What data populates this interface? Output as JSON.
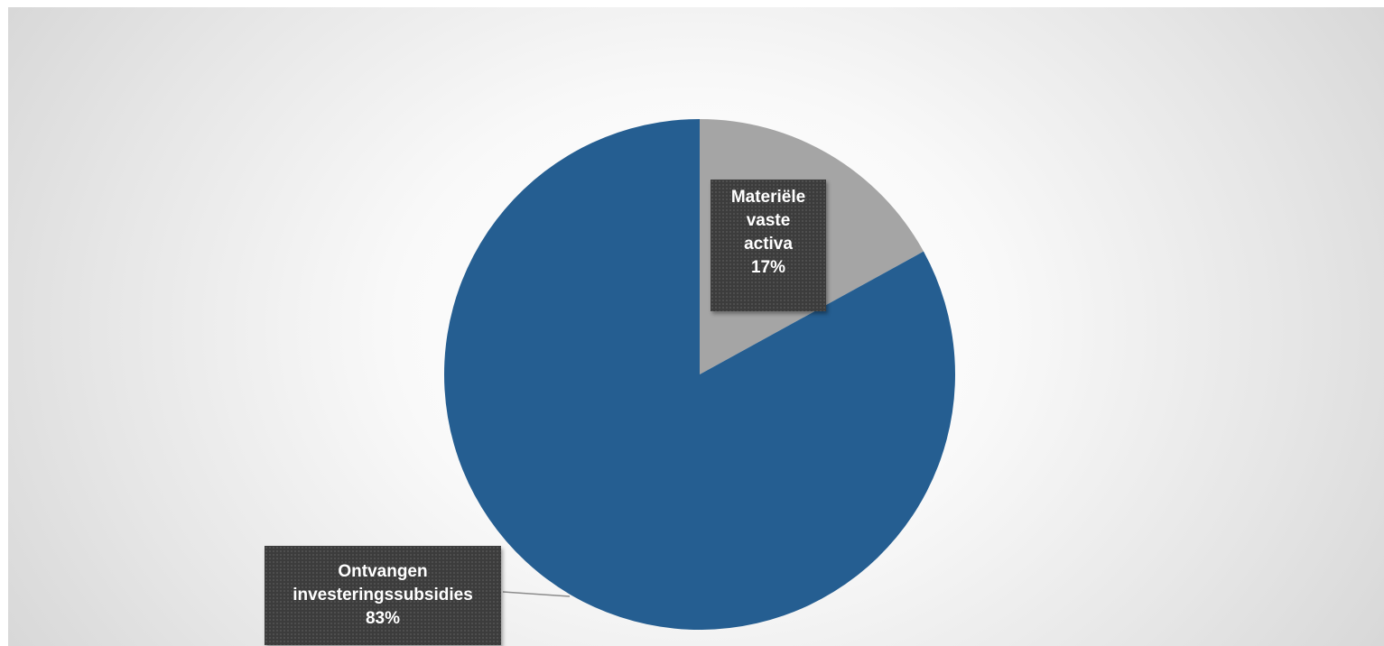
{
  "chart_data": {
    "type": "pie",
    "title": "",
    "start_angle_deg": 0,
    "direction": "clockwise",
    "series": [
      {
        "name": "",
        "slices": [
          {
            "label_lines": [
              "Materiële",
              "vaste",
              "activa"
            ],
            "percent_label": "17%",
            "value": 17,
            "color": "#a5a5a5"
          },
          {
            "label_lines": [
              "Ontvangen",
              "investeringssubsidies"
            ],
            "percent_label": "83%",
            "value": 83,
            "color": "#255e91"
          }
        ]
      }
    ],
    "legend": "none",
    "data_label_style": "dark callout boxes"
  }
}
